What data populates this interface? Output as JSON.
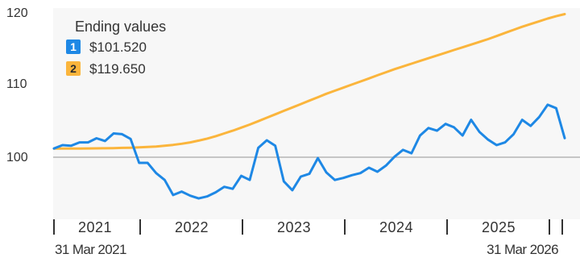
{
  "chart_data": {
    "type": "line",
    "x": [
      "2021-03-31",
      "2021-04-30",
      "2021-05-31",
      "2021-06-30",
      "2021-07-31",
      "2021-08-31",
      "2021-09-30",
      "2021-10-31",
      "2021-11-30",
      "2021-12-31",
      "2022-01-31",
      "2022-02-28",
      "2022-03-31",
      "2022-04-30",
      "2022-05-31",
      "2022-06-30",
      "2022-07-31",
      "2022-08-31",
      "2022-09-30",
      "2022-10-31",
      "2022-11-30",
      "2022-12-31",
      "2023-01-31",
      "2023-02-28",
      "2023-03-31",
      "2023-04-30",
      "2023-05-31",
      "2023-06-30",
      "2023-07-31",
      "2023-08-31",
      "2023-09-30",
      "2023-10-31",
      "2023-11-30",
      "2023-12-31",
      "2024-01-31",
      "2024-02-29",
      "2024-03-31",
      "2024-04-30",
      "2024-05-31",
      "2024-06-30",
      "2024-07-31",
      "2024-08-31",
      "2024-09-30",
      "2024-10-31",
      "2024-11-30",
      "2024-12-31",
      "2025-01-31",
      "2025-02-28",
      "2025-03-31",
      "2025-04-30",
      "2025-05-31",
      "2025-06-30",
      "2025-07-31",
      "2025-08-31",
      "2025-09-30",
      "2025-10-31",
      "2025-11-30",
      "2025-12-31",
      "2026-01-31",
      "2026-02-28",
      "2026-03-31"
    ],
    "series": [
      {
        "name": "1",
        "color": "#1e88e5",
        "values": [
          100.0,
          100.5,
          100.4,
          100.9,
          100.9,
          101.5,
          101.1,
          102.2,
          102.1,
          101.4,
          97.9,
          97.9,
          96.4,
          95.4,
          93.2,
          93.7,
          93.1,
          92.7,
          93.0,
          93.6,
          94.4,
          94.1,
          96.0,
          95.4,
          100.1,
          101.2,
          100.4,
          95.2,
          93.9,
          95.9,
          96.3,
          98.6,
          96.5,
          95.4,
          95.7,
          96.1,
          96.4,
          97.2,
          96.6,
          97.5,
          98.8,
          99.8,
          99.3,
          101.9,
          103.0,
          102.6,
          103.6,
          103.1,
          101.9,
          104.2,
          102.4,
          101.3,
          100.5,
          100.9,
          102.1,
          104.2,
          103.3,
          104.6,
          106.4,
          105.9,
          101.52
        ]
      },
      {
        "name": "2",
        "color": "#fbb53c",
        "values": [
          100.0,
          100.0,
          100.0,
          100.0,
          100.01,
          100.02,
          100.04,
          100.06,
          100.09,
          100.12,
          100.17,
          100.23,
          100.3,
          100.4,
          100.53,
          100.7,
          100.9,
          101.15,
          101.45,
          101.8,
          102.2,
          102.6,
          103.05,
          103.5,
          104.0,
          104.5,
          105.0,
          105.5,
          106.0,
          106.5,
          107.0,
          107.5,
          108.0,
          108.45,
          108.9,
          109.35,
          109.8,
          110.25,
          110.7,
          111.15,
          111.6,
          112.0,
          112.4,
          112.8,
          113.2,
          113.6,
          114.0,
          114.4,
          114.8,
          115.2,
          115.6,
          116.0,
          116.45,
          116.9,
          117.35,
          117.8,
          118.2,
          118.6,
          119.0,
          119.35,
          119.65
        ]
      }
    ],
    "y_ticks": [
      "100",
      "110",
      "120"
    ],
    "ylim": [
      91.3,
      120.3
    ],
    "baseline": 100,
    "x_year_labels": [
      "2021",
      "2022",
      "2023",
      "2024",
      "2025"
    ],
    "x_start_label": "31 Mar 2021",
    "x_end_label": "31 Mar 2026",
    "legend": {
      "title": "Ending values",
      "position": "top-left",
      "items": [
        {
          "badge": "1",
          "color": "#1e88e5",
          "value": "$101.520"
        },
        {
          "badge": "2",
          "color": "#fbb53c",
          "value": "$119.650"
        }
      ]
    },
    "grid": false
  }
}
